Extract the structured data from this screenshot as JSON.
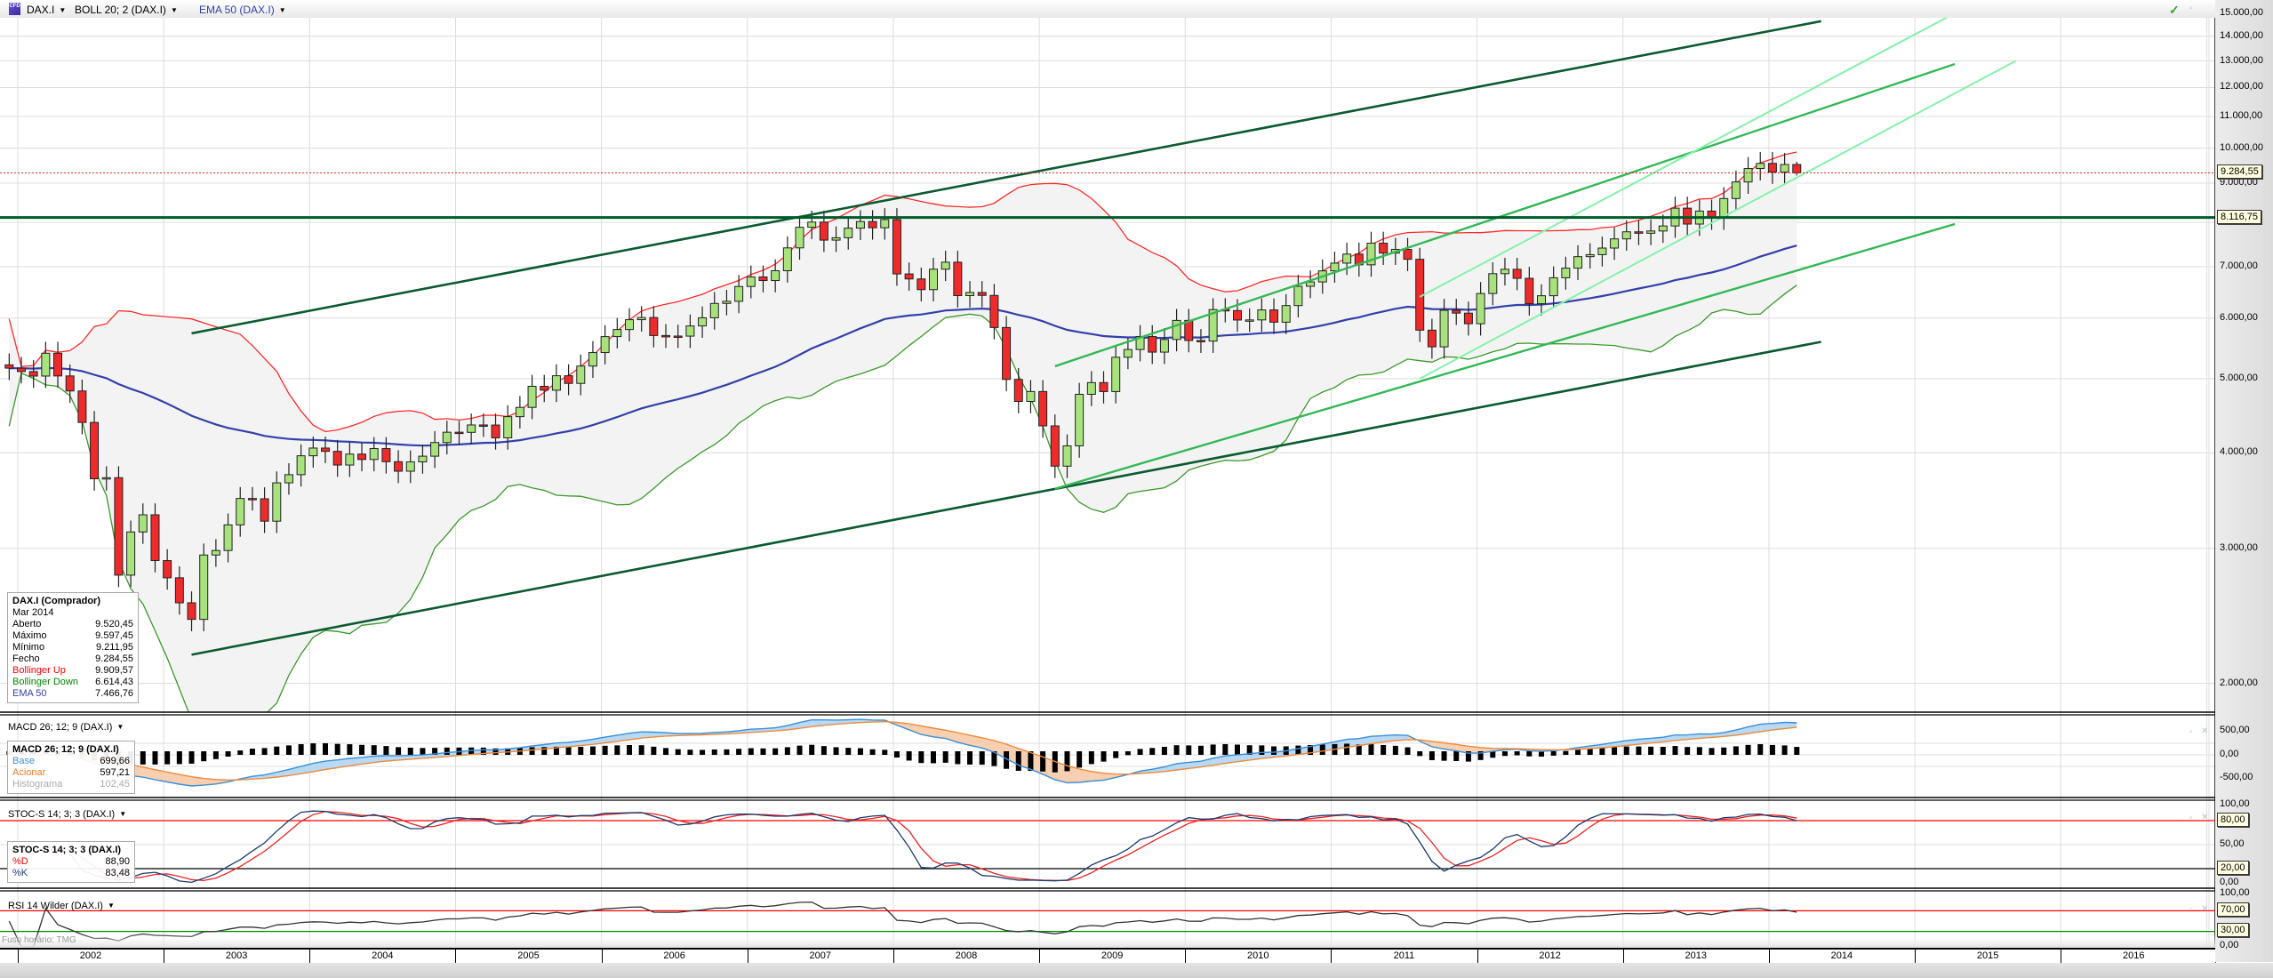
{
  "header": {
    "symbol": "DAX.I",
    "indicator_boll": "BOLL 20; 2 (DAX.I)",
    "indicator_ema": "EMA 50 (DAX.I)",
    "cfd_badge": "CFD"
  },
  "info_box": {
    "title": "DAX.I (Comprador)",
    "date": "Mar 2014",
    "rows": [
      {
        "label": "Aberto",
        "value": "9.520,45"
      },
      {
        "label": "Máximo",
        "value": "9.597,45"
      },
      {
        "label": "Mínimo",
        "value": "9.211,95"
      },
      {
        "label": "Fecho",
        "value": "9.284,55"
      },
      {
        "label": "Bollinger Up",
        "value": "9.909,57"
      },
      {
        "label": "Bollinger Down",
        "value": "6.614,43"
      },
      {
        "label": "EMA 50",
        "value": "7.466,76"
      }
    ]
  },
  "price_axis": {
    "ticks": [
      "15.000,00",
      "14.000,00",
      "13.000,00",
      "12.000,00",
      "11.000,00",
      "10.000,00",
      "9.000,00",
      "7.000,00",
      "6.000,00",
      "5.000,00",
      "4.000,00",
      "3.000,00",
      "2.000,00"
    ],
    "tick_values": [
      15000,
      14000,
      13000,
      12000,
      11000,
      10000,
      9000,
      7000,
      6000,
      5000,
      4000,
      3000,
      2000
    ],
    "last_price_label": "9.284,55",
    "last_price": 9284.55,
    "hline_label": "8.116,75",
    "hline_price": 8116.75
  },
  "macd": {
    "title": "MACD 26; 12; 9 (DAX.I)",
    "box_title": "MACD 26; 12; 9 (DAX.I)",
    "rows": [
      {
        "label": "Base",
        "value": "699,66"
      },
      {
        "label": "Acionar",
        "value": "597,21"
      },
      {
        "label": "Histograma",
        "value": "102,45"
      }
    ],
    "ticks": [
      "500,00",
      "0,00",
      "-500,00"
    ]
  },
  "stoch": {
    "title": "STOC-S 14; 3; 3 (DAX.I)",
    "box_title": "STOC-S 14; 3; 3 (DAX.I)",
    "rows": [
      {
        "label": "%D",
        "value": "88,90"
      },
      {
        "label": "%K",
        "value": "83,48"
      }
    ],
    "ticks": [
      "100,00",
      "50,00",
      "0,00"
    ],
    "upper_label": "80,00",
    "lower_label": "20,00"
  },
  "rsi": {
    "title": "RSI 14 Wilder (DAX.I)",
    "ticks": [
      "100,00",
      "0,00"
    ],
    "upper_label": "70,00",
    "lower_label": "30,00"
  },
  "footer": {
    "timezone": "Fuso horário: TMG",
    "years": [
      "2002",
      "2003",
      "2004",
      "2005",
      "2006",
      "2007",
      "2008",
      "2009",
      "2010",
      "2011",
      "2012",
      "2013",
      "2014",
      "2015",
      "2016"
    ]
  },
  "colors": {
    "candle_up": "#a8e27c",
    "candle_down": "#ee2b2b",
    "boll_up": "#ff2a2a",
    "boll_down": "#3a9a2a",
    "ema": "#3340a8",
    "macd_base": "#3b8fd8",
    "macd_signal": "#f08a3c",
    "stoch_k": "#1c3a6e",
    "stoch_d": "#ee2222"
  },
  "chart_data": {
    "type": "line",
    "series_style": "candlestick",
    "title": "DAX.I",
    "interval": "monthly",
    "start": "2001-12",
    "closes": [
      5160,
      5108,
      5039,
      5397,
      5041,
      4818,
      4383,
      3700,
      3712,
      2769,
      3153,
      3320,
      2893,
      2747,
      2548,
      2424,
      2942,
      2982,
      3221,
      3487,
      3484,
      3257,
      3655,
      3746,
      3965,
      4058,
      4018,
      3856,
      3985,
      3921,
      4052,
      3895,
      3785,
      3893,
      3960,
      4126,
      4256,
      4254,
      4350,
      4349,
      4185,
      4460,
      4586,
      4886,
      4829,
      5044,
      4929,
      5193,
      5408,
      5674,
      5796,
      5970,
      6009,
      5692,
      5683,
      5682,
      5859,
      6004,
      6269,
      6309,
      6597,
      6789,
      6716,
      6917,
      7409,
      7883,
      8007,
      7584,
      7638,
      7862,
      8019,
      7871,
      8067,
      6851,
      6748,
      6535,
      6949,
      7097,
      6418,
      6479,
      6422,
      5831,
      4988,
      4669,
      4810,
      4338,
      3843,
      4085,
      4770,
      4941,
      4809,
      5332,
      5458,
      5675,
      5415,
      5625,
      5957,
      5608,
      5598,
      6154,
      6136,
      5964,
      5966,
      6148,
      5925,
      6229,
      6601,
      6688,
      6914,
      7077,
      7272,
      7041,
      7514,
      7294,
      7376,
      7159,
      5785,
      5502,
      6141,
      6089,
      5898,
      6459,
      6856,
      6947,
      6761,
      6264,
      6416,
      6772,
      6971,
      7216,
      7260,
      7405,
      7612,
      7776,
      7742,
      7795,
      7914,
      8349,
      7959,
      8276,
      8104,
      8594,
      9033,
      9406,
      9552,
      9306,
      9520.45,
      9284.55
    ],
    "last_candle": {
      "open": 9520.45,
      "high": 9597.45,
      "low": 9211.95,
      "close": 9284.55
    },
    "ylim": [
      1850,
      15500
    ],
    "yscale": "log",
    "trendlines": [
      {
        "kind": "dark",
        "from": {
          "date": "2003-03",
          "price": 5730
        },
        "to": {
          "date": "2014-05",
          "price": 14650
        }
      },
      {
        "kind": "dark",
        "from": {
          "date": "2003-03",
          "price": 2180
        },
        "to": {
          "date": "2014-05",
          "price": 5585
        }
      },
      {
        "kind": "medium",
        "from": {
          "date": "2009-02",
          "price": 5190
        },
        "to": {
          "date": "2015-04",
          "price": 12880
        }
      },
      {
        "kind": "medium",
        "from": {
          "date": "2009-02",
          "price": 3590
        },
        "to": {
          "date": "2015-04",
          "price": 7960
        }
      },
      {
        "kind": "light",
        "from": {
          "date": "2011-08",
          "price": 6395
        },
        "to": {
          "date": "2015-06",
          "price": 15600
        }
      },
      {
        "kind": "light",
        "from": {
          "date": "2011-08",
          "price": 5000
        },
        "to": {
          "date": "2015-09",
          "price": 13000
        }
      }
    ],
    "indicators": {
      "bollinger": [
        20,
        2
      ],
      "ema": 50,
      "macd": [
        26,
        12,
        9
      ],
      "stoch": [
        14,
        3,
        3
      ],
      "rsi": 14
    },
    "stoch_levels": [
      80,
      20
    ],
    "rsi_levels": [
      70,
      30
    ]
  }
}
